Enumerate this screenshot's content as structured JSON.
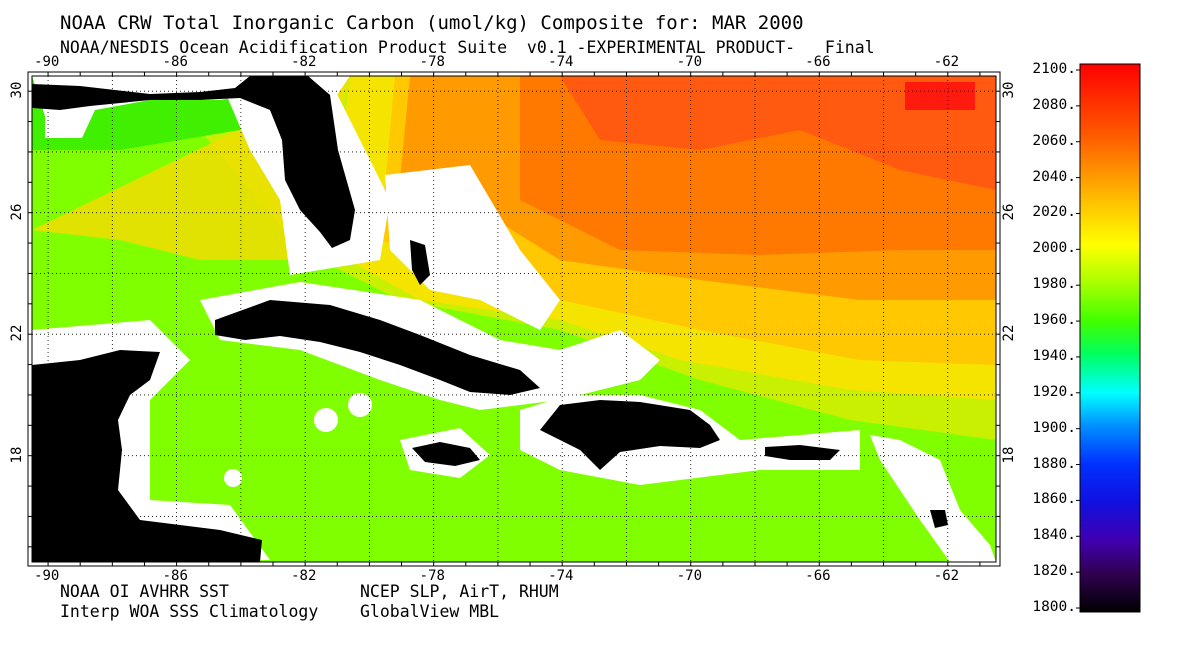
{
  "header": {
    "title": "NOAA CRW Total Inorganic Carbon (umol/kg) Composite for: MAR 2000",
    "subtitle": "NOAA/NESDIS Ocean Acidification Product Suite  v0.1 -EXPERIMENTAL PRODUCT-   Final"
  },
  "axes": {
    "lon_ticks": [
      "-90",
      "-86",
      "-82",
      "-78",
      "-74",
      "-70",
      "-66",
      "-62"
    ],
    "lat_ticks": [
      "30",
      "26",
      "22",
      "18"
    ],
    "lon_range": [
      -90.5,
      -60.5
    ],
    "lat_range": [
      14.5,
      30.5
    ]
  },
  "colorbar": {
    "labels": [
      "2100.",
      "2080.",
      "2060.",
      "2040.",
      "2020.",
      "2000.",
      "1980.",
      "1960.",
      "1940.",
      "1920.",
      "1900.",
      "1880.",
      "1860.",
      "1840.",
      "1820.",
      "1800."
    ],
    "min": 1800,
    "max": 2100
  },
  "footer": {
    "left_line1": "NOAA OI AVHRR SST",
    "left_line2": "Interp WOA SSS Climatology",
    "right_line1": "NCEP SLP, AirT, RHUM",
    "right_line2": "GlobalView MBL"
  },
  "colors": {
    "land": "#000000",
    "mask": "#ffffff",
    "green": "#7fff00",
    "yellow_green": "#c8f000",
    "yellow": "#f0e000",
    "gold": "#ffc800",
    "orange": "#ff8c00",
    "dark_orange": "#ff6400",
    "red_orange": "#ff4010",
    "red": "#ff1010"
  }
}
